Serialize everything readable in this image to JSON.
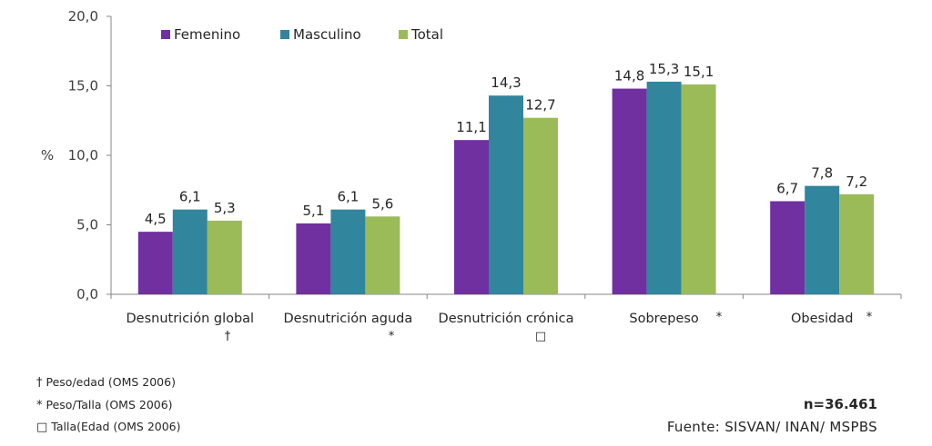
{
  "chart_data": {
    "type": "bar",
    "ylabel": "%",
    "ylim": [
      0,
      20
    ],
    "yticks": [
      "0,0",
      "5,0",
      "10,0",
      "15,0",
      "20,0"
    ],
    "categories": [
      "Desnutrición global",
      "Desnutrición aguda",
      "Desnutrición crónica",
      "Sobrepeso",
      "Obesidad"
    ],
    "category_marks": [
      "†",
      "*",
      "□",
      "*",
      "*"
    ],
    "series": [
      {
        "name": "Femenino",
        "color": "#7030A0",
        "values": [
          4.5,
          5.1,
          11.1,
          14.8,
          6.7
        ],
        "labels": [
          "4,5",
          "5,1",
          "11,1",
          "14,8",
          "6,7"
        ]
      },
      {
        "name": "Masculino",
        "color": "#31859C",
        "values": [
          6.1,
          6.1,
          14.3,
          15.3,
          7.8
        ],
        "labels": [
          "6,1",
          "6,1",
          "14,3",
          "15,3",
          "7,8"
        ]
      },
      {
        "name": "Total",
        "color": "#9BBB59",
        "values": [
          5.3,
          5.6,
          12.7,
          15.1,
          7.2
        ],
        "labels": [
          "5,3",
          "5,6",
          "12,7",
          "15,1",
          "7,2"
        ]
      }
    ],
    "legend_position": "top-left",
    "grid": false
  },
  "footnotes": [
    {
      "symbol": "†",
      "text": "Peso/edad (OMS 2006)"
    },
    {
      "symbol": "*",
      "text": "Peso/Talla (OMS 2006)"
    },
    {
      "symbol": "□",
      "text": "Talla(Edad (OMS 2006)"
    }
  ],
  "sample_size": "n=36.461",
  "source": "Fuente:  SISVAN/  INAN/  MSPBS"
}
